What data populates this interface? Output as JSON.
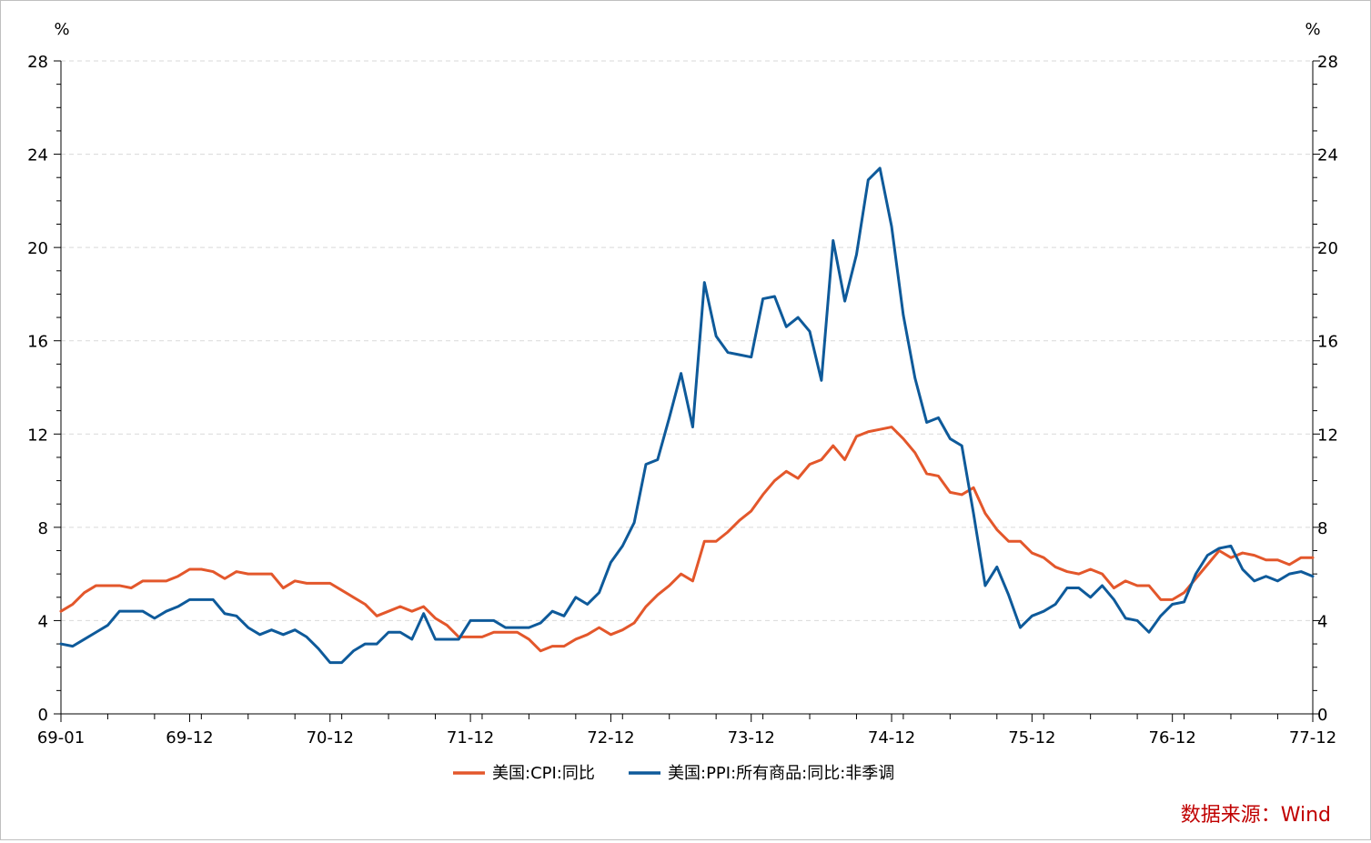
{
  "chart_data": {
    "type": "line",
    "y_unit_left": "%",
    "y_unit_right": "%",
    "ylim": [
      0,
      28
    ],
    "y_ticks": [
      0,
      4,
      8,
      12,
      16,
      20,
      24,
      28
    ],
    "y_tick_labels": [
      "0",
      "4",
      "8",
      "12",
      "16",
      "20",
      "24",
      "28"
    ],
    "grid": "horizontal dashed",
    "legend_position": "bottom-center",
    "source": "数据来源：Wind",
    "x_start": "1969-01",
    "x_end": "1977-12",
    "x_tick_labels": [
      "69-01",
      "69-12",
      "70-12",
      "71-12",
      "72-12",
      "73-12",
      "74-12",
      "75-12",
      "76-12",
      "77-12"
    ],
    "x_tick_months": [
      0,
      11,
      23,
      35,
      47,
      59,
      71,
      83,
      95,
      107
    ],
    "series": [
      {
        "name": "美国:CPI:同比",
        "color": "#e3572b",
        "values": [
          4.4,
          4.7,
          5.2,
          5.5,
          5.5,
          5.5,
          5.4,
          5.7,
          5.7,
          5.7,
          5.9,
          6.2,
          6.2,
          6.1,
          5.8,
          6.1,
          6.0,
          6.0,
          6.0,
          5.4,
          5.7,
          5.6,
          5.6,
          5.6,
          5.3,
          5.0,
          4.7,
          4.2,
          4.4,
          4.6,
          4.4,
          4.6,
          4.1,
          3.8,
          3.3,
          3.3,
          3.3,
          3.5,
          3.5,
          3.5,
          3.2,
          2.7,
          2.9,
          2.9,
          3.2,
          3.4,
          3.7,
          3.4,
          3.6,
          3.9,
          4.6,
          5.1,
          5.5,
          6.0,
          5.7,
          7.4,
          7.4,
          7.8,
          8.3,
          8.7,
          9.4,
          10.0,
          10.4,
          10.1,
          10.7,
          10.9,
          11.5,
          10.9,
          11.9,
          12.1,
          12.2,
          12.3,
          11.8,
          11.2,
          10.3,
          10.2,
          9.5,
          9.4,
          9.7,
          8.6,
          7.9,
          7.4,
          7.4,
          6.9,
          6.7,
          6.3,
          6.1,
          6.0,
          6.2,
          6.0,
          5.4,
          5.7,
          5.5,
          5.5,
          4.9,
          4.9,
          5.2,
          5.8,
          6.4,
          7.0,
          6.7,
          6.9,
          6.8,
          6.6,
          6.6,
          6.4,
          6.7,
          6.7
        ]
      },
      {
        "name": "美国:PPI:所有商品:同比:非季调",
        "color": "#0e5a9a",
        "values": [
          3.0,
          2.9,
          3.2,
          3.5,
          3.8,
          4.4,
          4.4,
          4.4,
          4.1,
          4.4,
          4.6,
          4.9,
          4.9,
          4.9,
          4.3,
          4.2,
          3.7,
          3.4,
          3.6,
          3.4,
          3.6,
          3.3,
          2.8,
          2.2,
          2.2,
          2.7,
          3.0,
          3.0,
          3.5,
          3.5,
          3.2,
          4.3,
          3.2,
          3.2,
          3.2,
          4.0,
          4.0,
          4.0,
          3.7,
          3.7,
          3.7,
          3.9,
          4.4,
          4.2,
          5.0,
          4.7,
          5.2,
          6.5,
          7.2,
          8.2,
          10.7,
          10.9,
          12.7,
          14.6,
          12.3,
          18.5,
          16.2,
          15.5,
          15.4,
          15.3,
          17.8,
          17.9,
          16.6,
          17.0,
          16.4,
          14.3,
          20.3,
          17.7,
          19.7,
          22.9,
          23.4,
          20.9,
          17.1,
          14.4,
          12.5,
          12.7,
          11.8,
          11.5,
          8.6,
          5.5,
          6.3,
          5.1,
          3.7,
          4.2,
          4.4,
          4.7,
          5.4,
          5.4,
          5.0,
          5.5,
          4.9,
          4.1,
          4.0,
          3.5,
          4.2,
          4.7,
          4.8,
          6.0,
          6.8,
          7.1,
          7.2,
          6.2,
          5.7,
          5.9,
          5.7,
          6.0,
          6.1,
          5.9
        ]
      }
    ]
  }
}
